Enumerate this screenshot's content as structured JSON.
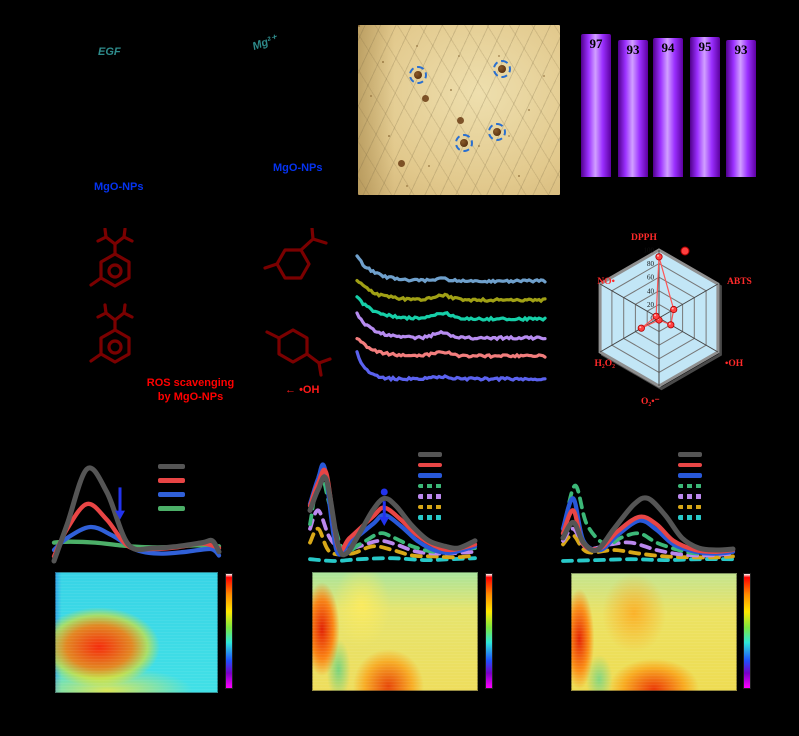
{
  "background_color": "#000000",
  "scheme": {
    "egf_label": "EGF",
    "magnesium_ion_label": "Mg²⁺",
    "nanoparticle_label_top_right": "MgO-NPs",
    "nanoparticle_label_bottom_left": "MgO-NPs",
    "caption_line1": "ROS scavenging",
    "caption_line2": "by MgO-NPs",
    "arrow_glyph": "←",
    "hydroxyl_radical_label": "•OH"
  },
  "colors": {
    "teal_text": "#2e8b8b",
    "blue_text": "#0533f0",
    "dark_red_structures": "#7a0000",
    "red_text": "#ff0000",
    "bar_purple": "#9b30ff"
  },
  "chart_data": [
    {
      "type": "bar",
      "id": "viability-bars",
      "values": [
        97,
        93,
        94,
        95,
        93
      ],
      "ylim": [
        0,
        100
      ],
      "bar_color": "#9b30ff",
      "value_labels_shown_on_bars": true
    },
    {
      "type": "line",
      "id": "decay-traces",
      "series": [
        {
          "color": "#6fa0cc",
          "baseline": 38,
          "start_amplitude": 24,
          "bump": 2,
          "k": 0.09
        },
        {
          "color": "#a0a015",
          "baseline": 57,
          "start_amplitude": 20,
          "bump": 5,
          "k": 0.09
        },
        {
          "color": "#16cfa8",
          "baseline": 76,
          "start_amplitude": 22,
          "bump": 6,
          "k": 0.09
        },
        {
          "color": "#b78cf0",
          "baseline": 95,
          "start_amplitude": 24,
          "bump": 5,
          "k": 0.08
        },
        {
          "color": "#f27d7d",
          "baseline": 113,
          "start_amplitude": 18,
          "bump": 4,
          "k": 0.08
        },
        {
          "color": "#5b62ef",
          "baseline": 136,
          "start_amplitude": 27,
          "bump": 2,
          "k": 0.045
        }
      ]
    },
    {
      "type": "radar",
      "id": "scavenging-radar",
      "range": [
        0,
        100
      ],
      "tick_labels": [
        "0",
        "20",
        "40",
        "60",
        "80",
        "100"
      ],
      "axes": [
        "DPPH",
        "ABTS",
        "•OH",
        "O₂•⁻",
        "H₂O₂",
        "NO•"
      ],
      "values": [
        90,
        25,
        20,
        3,
        30,
        5
      ],
      "fill_color": "#c2e6f6",
      "point_color": "#ff4040",
      "label_color": "#ff2a2a",
      "legend_position": "top-right-dot"
    },
    {
      "type": "line+heatmap",
      "id": "panel-d",
      "series": [
        {
          "color": "#555555",
          "style": "solid",
          "points": [
            [
              0,
              0
            ],
            [
              0.08,
              40
            ],
            [
              0.2,
              100
            ],
            [
              0.32,
              75
            ],
            [
              0.45,
              18
            ],
            [
              0.6,
              14
            ],
            [
              0.75,
              16
            ],
            [
              0.9,
              20
            ],
            [
              0.96,
              22
            ],
            [
              1,
              10
            ]
          ]
        },
        {
          "color": "#e84545",
          "style": "solid",
          "points": [
            [
              0,
              5
            ],
            [
              0.08,
              35
            ],
            [
              0.2,
              62
            ],
            [
              0.32,
              45
            ],
            [
              0.45,
              16
            ],
            [
              0.6,
              13
            ],
            [
              0.75,
              15
            ],
            [
              0.9,
              19
            ],
            [
              1,
              14
            ]
          ]
        },
        {
          "color": "#3060d8",
          "style": "solid",
          "points": [
            [
              0,
              12
            ],
            [
              0.08,
              25
            ],
            [
              0.22,
              37
            ],
            [
              0.35,
              28
            ],
            [
              0.5,
              12
            ],
            [
              0.65,
              8
            ],
            [
              0.8,
              10
            ],
            [
              0.95,
              13
            ],
            [
              1,
              6
            ]
          ]
        },
        {
          "color": "#4caf68",
          "style": "solid",
          "points": [
            [
              0,
              20
            ],
            [
              0.1,
              21
            ],
            [
              0.25,
              20
            ],
            [
              0.4,
              17
            ],
            [
              0.55,
              15
            ],
            [
              0.7,
              15
            ],
            [
              0.85,
              17
            ],
            [
              1,
              16
            ]
          ]
        }
      ],
      "annotation": {
        "type": "arrow-down",
        "color": "#2233ee",
        "x": 0.4,
        "from": 80,
        "to": 45
      },
      "heatmap": "red-orange hotspot lower-left on cyan field",
      "colorbar": "jet"
    },
    {
      "type": "line+heatmap",
      "id": "panel-e",
      "series": [
        {
          "color": "#555555",
          "style": "solid",
          "points": [
            [
              0,
              55
            ],
            [
              0.05,
              78
            ],
            [
              0.1,
              88
            ],
            [
              0.17,
              18
            ],
            [
              0.22,
              8
            ],
            [
              0.3,
              30
            ],
            [
              0.38,
              55
            ],
            [
              0.45,
              68
            ],
            [
              0.52,
              60
            ],
            [
              0.62,
              38
            ],
            [
              0.72,
              22
            ],
            [
              0.82,
              16
            ],
            [
              0.9,
              14
            ],
            [
              1,
              22
            ]
          ]
        },
        {
          "color": "#e84545",
          "style": "solid",
          "points": [
            [
              0,
              60
            ],
            [
              0.05,
              85
            ],
            [
              0.1,
              95
            ],
            [
              0.17,
              15
            ],
            [
              0.24,
              25
            ],
            [
              0.38,
              48
            ],
            [
              0.45,
              58
            ],
            [
              0.55,
              45
            ],
            [
              0.65,
              28
            ],
            [
              0.75,
              17
            ],
            [
              0.85,
              12
            ],
            [
              1,
              18
            ]
          ]
        },
        {
          "color": "#2858d8",
          "style": "solid",
          "points": [
            [
              0,
              62
            ],
            [
              0.05,
              90
            ],
            [
              0.09,
              100
            ],
            [
              0.16,
              12
            ],
            [
              0.24,
              20
            ],
            [
              0.38,
              40
            ],
            [
              0.45,
              50
            ],
            [
              0.55,
              38
            ],
            [
              0.65,
              22
            ],
            [
              0.75,
              12
            ],
            [
              0.85,
              9
            ],
            [
              1,
              16
            ]
          ]
        },
        {
          "color": "#3cb878",
          "style": "dashed",
          "points": [
            [
              0,
              40
            ],
            [
              0.06,
              95
            ],
            [
              0.12,
              60
            ],
            [
              0.2,
              12
            ],
            [
              0.3,
              18
            ],
            [
              0.42,
              30
            ],
            [
              0.5,
              26
            ],
            [
              0.62,
              16
            ],
            [
              0.75,
              10
            ],
            [
              0.88,
              12
            ],
            [
              1,
              14
            ]
          ]
        },
        {
          "color": "#bb88ee",
          "style": "dashed",
          "points": [
            [
              0,
              35
            ],
            [
              0.05,
              55
            ],
            [
              0.12,
              25
            ],
            [
              0.2,
              12
            ],
            [
              0.3,
              16
            ],
            [
              0.42,
              22
            ],
            [
              0.52,
              18
            ],
            [
              0.65,
              10
            ],
            [
              0.8,
              8
            ],
            [
              1,
              10
            ]
          ]
        },
        {
          "color": "#d8a818",
          "style": "dashed",
          "points": [
            [
              0,
              20
            ],
            [
              0.05,
              35
            ],
            [
              0.12,
              10
            ],
            [
              0.25,
              8
            ],
            [
              0.38,
              16
            ],
            [
              0.5,
              12
            ],
            [
              0.62,
              6
            ],
            [
              0.75,
              5
            ],
            [
              0.88,
              4
            ],
            [
              1,
              6
            ]
          ]
        },
        {
          "color": "#28c8c8",
          "style": "dashed",
          "points": [
            [
              0,
              2
            ],
            [
              0.15,
              0
            ],
            [
              0.3,
              2
            ],
            [
              0.5,
              3
            ],
            [
              0.7,
              1
            ],
            [
              0.85,
              2
            ],
            [
              1,
              3
            ]
          ]
        }
      ],
      "annotation": {
        "type": "arrow-down-with-marker",
        "color": "#2233ee",
        "x": 0.45,
        "marker": 75,
        "from": 65,
        "to": 38
      },
      "heatmap": "red column left and red blob bottom-center on yellow-green field",
      "colorbar": "jet"
    },
    {
      "type": "line+heatmap",
      "id": "panel-f",
      "series": [
        {
          "color": "#555555",
          "style": "solid",
          "points": [
            [
              0,
              25
            ],
            [
              0.06,
              42
            ],
            [
              0.12,
              20
            ],
            [
              0.2,
              12
            ],
            [
              0.3,
              35
            ],
            [
              0.42,
              62
            ],
            [
              0.5,
              68
            ],
            [
              0.6,
              50
            ],
            [
              0.7,
              25
            ],
            [
              0.8,
              14
            ],
            [
              0.9,
              12
            ],
            [
              1,
              13
            ]
          ]
        },
        {
          "color": "#e84545",
          "style": "solid",
          "points": [
            [
              0,
              30
            ],
            [
              0.06,
              55
            ],
            [
              0.12,
              18
            ],
            [
              0.22,
              14
            ],
            [
              0.32,
              32
            ],
            [
              0.45,
              48
            ],
            [
              0.55,
              40
            ],
            [
              0.65,
              22
            ],
            [
              0.78,
              12
            ],
            [
              0.9,
              10
            ],
            [
              1,
              12
            ]
          ]
        },
        {
          "color": "#2858d8",
          "style": "solid",
          "points": [
            [
              0,
              35
            ],
            [
              0.06,
              68
            ],
            [
              0.12,
              22
            ],
            [
              0.22,
              12
            ],
            [
              0.32,
              28
            ],
            [
              0.45,
              44
            ],
            [
              0.55,
              34
            ],
            [
              0.65,
              18
            ],
            [
              0.78,
              10
            ],
            [
              0.9,
              8
            ],
            [
              1,
              10
            ]
          ]
        },
        {
          "color": "#3cb878",
          "style": "dashed",
          "points": [
            [
              0,
              30
            ],
            [
              0.07,
              82
            ],
            [
              0.14,
              40
            ],
            [
              0.25,
              18
            ],
            [
              0.35,
              26
            ],
            [
              0.45,
              30
            ],
            [
              0.55,
              20
            ],
            [
              0.68,
              12
            ],
            [
              0.8,
              8
            ],
            [
              1,
              10
            ]
          ]
        },
        {
          "color": "#bb88ee",
          "style": "dashed",
          "points": [
            [
              0,
              22
            ],
            [
              0.06,
              35
            ],
            [
              0.14,
              14
            ],
            [
              0.28,
              18
            ],
            [
              0.4,
              20
            ],
            [
              0.55,
              12
            ],
            [
              0.7,
              7
            ],
            [
              0.85,
              6
            ],
            [
              1,
              8
            ]
          ]
        },
        {
          "color": "#d8a818",
          "style": "dashed",
          "points": [
            [
              0,
              18
            ],
            [
              0.06,
              28
            ],
            [
              0.14,
              10
            ],
            [
              0.3,
              12
            ],
            [
              0.45,
              8
            ],
            [
              0.6,
              5
            ],
            [
              0.75,
              4
            ],
            [
              0.9,
              4
            ],
            [
              1,
              5
            ]
          ]
        },
        {
          "color": "#28c8c8",
          "style": "dashed",
          "points": [
            [
              0,
              0
            ],
            [
              0.2,
              1
            ],
            [
              0.4,
              2
            ],
            [
              0.6,
              1
            ],
            [
              0.8,
              2
            ],
            [
              1,
              2
            ]
          ]
        }
      ],
      "heatmap": "red column left, orange center, red blob bottom-center on yellow field",
      "colorbar": "jet"
    }
  ]
}
